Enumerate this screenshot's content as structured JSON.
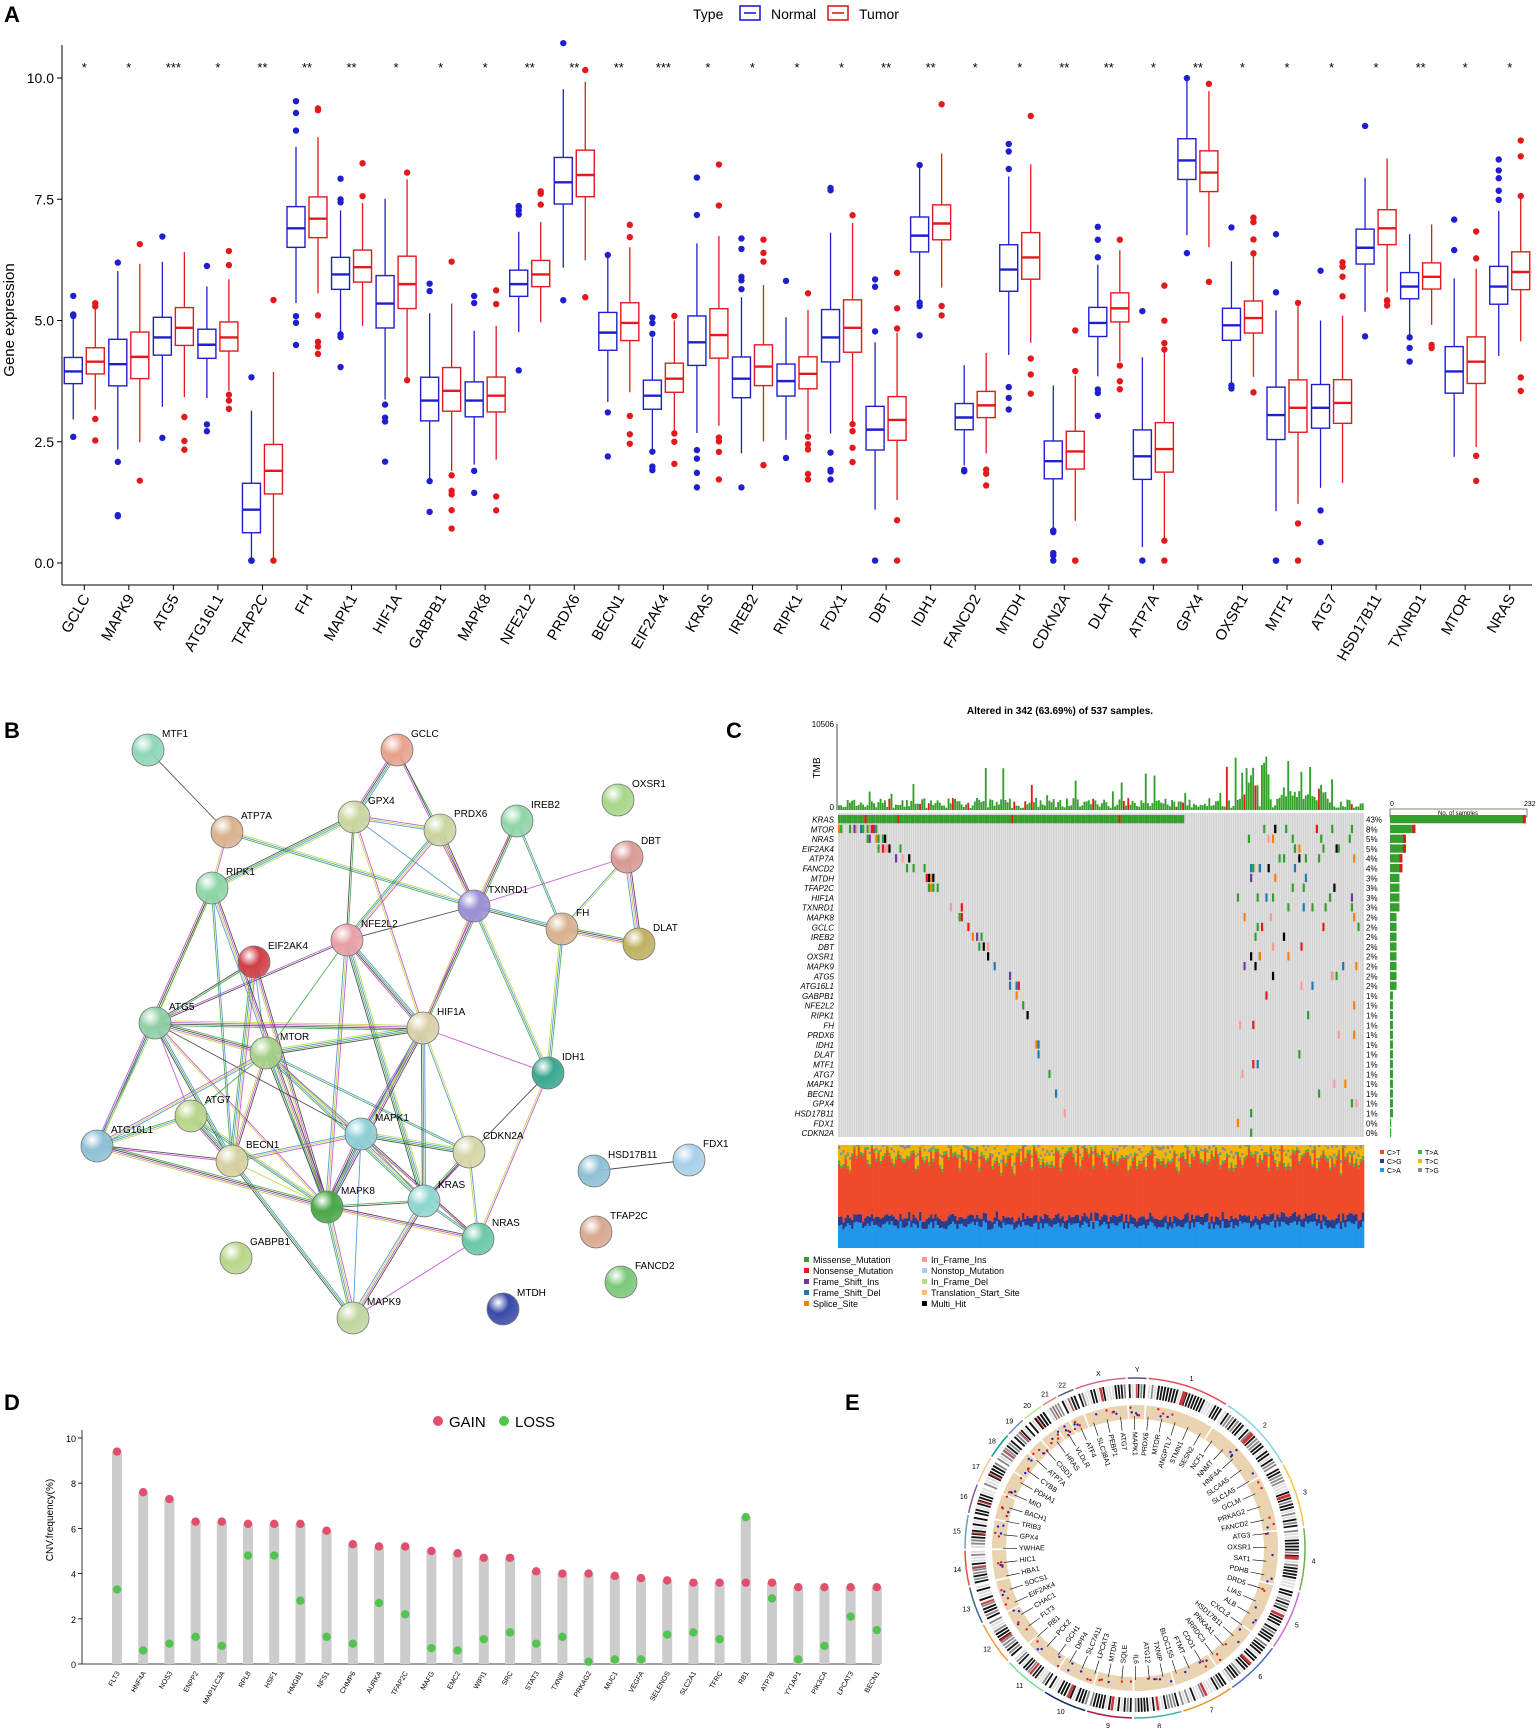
{
  "panel_letters": [
    "A",
    "B",
    "C",
    "D",
    "E"
  ],
  "colors": {
    "normal": "#1f1fd0",
    "tumor": "#e3191c",
    "gain": "#e0506e",
    "loss": "#54c451",
    "bar": "#cccccc",
    "missense": "#33a02c",
    "nonsense": "#e31a1c",
    "fs_ins": "#6a3d9a",
    "fs_del": "#1f78b4",
    "splice": "#ff7f00",
    "inframe_ins": "#fb9a99",
    "nonstop": "#a6cee3",
    "inframe_del": "#b2df8a",
    "tss": "#fdbf6f",
    "multi": "#000000"
  },
  "chart_data": [
    {
      "id": "A",
      "type": "box",
      "ylabel": "Gene expression",
      "legend_title": "Type",
      "legend": [
        "Normal",
        "Tumor"
      ],
      "legend_position": "top",
      "ylim": [
        -0.4,
        10.5
      ],
      "yticks": [
        "0.0",
        "2.5",
        "5.0",
        "7.5",
        "10.0"
      ],
      "categories": [
        "GCLC",
        "MAPK9",
        "ATG5",
        "ATG16L1",
        "TFAP2C",
        "FH",
        "MAPK1",
        "HIF1A",
        "GABPB1",
        "MAPK8",
        "NFE2L2",
        "PRDX6",
        "BECN1",
        "EIF2AK4",
        "KRAS",
        "IREB2",
        "RIPK1",
        "FDX1",
        "DBT",
        "IDH1",
        "FANCD2",
        "MTDH",
        "CDKN2A",
        "DLAT",
        "ATP7A",
        "GPX4",
        "OXSR1",
        "MTF1",
        "ATG7",
        "HSD17B11",
        "TXNRD1",
        "MTOR",
        "NRAS"
      ],
      "significance": [
        "*",
        "*",
        "***",
        "*",
        "**",
        "**",
        "**",
        "*",
        "*",
        "*",
        "**",
        "**",
        "**",
        "***",
        "*",
        "*",
        "*",
        "*",
        "**",
        "**",
        "*",
        "*",
        "**",
        "**",
        "*",
        "**",
        "*",
        "*",
        "*",
        "*",
        "**",
        "*",
        "*"
      ],
      "normal_median": [
        3.95,
        4.1,
        4.65,
        4.5,
        1.1,
        6.9,
        5.95,
        5.35,
        3.35,
        3.35,
        5.75,
        7.85,
        4.75,
        3.45,
        4.55,
        3.8,
        3.75,
        4.65,
        2.75,
        6.75,
        3.0,
        6.05,
        2.1,
        4.95,
        2.2,
        8.3,
        4.9,
        3.05,
        3.2,
        6.5,
        5.7,
        3.95,
        5.7
      ],
      "tumor_median": [
        4.15,
        4.25,
        4.85,
        4.65,
        1.9,
        7.1,
        6.1,
        5.75,
        3.55,
        3.45,
        5.95,
        8.0,
        4.95,
        3.8,
        4.7,
        4.05,
        3.9,
        4.85,
        2.95,
        7.0,
        3.25,
        6.3,
        2.3,
        5.25,
        2.35,
        8.05,
        5.05,
        3.2,
        3.3,
        6.9,
        5.9,
        4.15,
        6.0
      ]
    },
    {
      "id": "C",
      "type": "oncoplot",
      "title": "Altered in 342 (63.69%) of 537 samples.",
      "tmb_label": "TMB",
      "tmb_max": "10506",
      "samples_label": "No. of samples",
      "samples_axis": [
        "0",
        "232"
      ],
      "genes": [
        "KRAS",
        "MTOR",
        "NRAS",
        "EIF2AK4",
        "ATP7A",
        "FANCD2",
        "MTDH",
        "TFAP2C",
        "HIF1A",
        "TXNRD1",
        "MAPK8",
        "GCLC",
        "IREB2",
        "DBT",
        "OXSR1",
        "MAPK9",
        "ATG5",
        "ATG16L1",
        "GABPB1",
        "NFE2L2",
        "RIPK1",
        "FH",
        "PRDX6",
        "IDH1",
        "DLAT",
        "MTF1",
        "ATG7",
        "MAPK1",
        "BECN1",
        "GPX4",
        "HSD17B11",
        "FDX1",
        "CDKN2A"
      ],
      "percents": [
        "43%",
        "8%",
        "5%",
        "5%",
        "4%",
        "4%",
        "3%",
        "3%",
        "3%",
        "3%",
        "2%",
        "2%",
        "2%",
        "2%",
        "2%",
        "2%",
        "2%",
        "2%",
        "1%",
        "1%",
        "1%",
        "1%",
        "1%",
        "1%",
        "1%",
        "1%",
        "1%",
        "1%",
        "1%",
        "1%",
        "1%",
        "0%",
        "0%"
      ],
      "sample_counts": [
        230,
        43,
        27,
        27,
        21,
        21,
        16,
        16,
        16,
        16,
        11,
        11,
        11,
        11,
        11,
        11,
        11,
        11,
        5,
        5,
        5,
        5,
        5,
        5,
        5,
        5,
        5,
        5,
        5,
        5,
        5,
        2,
        2
      ],
      "titv_legend": [
        "C>T",
        "T>A",
        "C>G",
        "T>C",
        "C>A",
        "T>G"
      ],
      "titv_fraction": {
        "C>T": 0.55,
        "C>A": 0.22,
        "C>G": 0.08,
        "T>C": 0.09,
        "T>A": 0.03,
        "T>G": 0.03
      },
      "variant_legend": [
        "Missense_Mutation",
        "In_Frame_Ins",
        "Nonsense_Mutation",
        "Nonstop_Mutation",
        "Frame_Shift_Ins",
        "In_Frame_Del",
        "Frame_Shift_Del",
        "Translation_Start_Site",
        "Splice_Site",
        "Multi_Hit"
      ]
    },
    {
      "id": "D",
      "type": "lollipop",
      "ylabel": "CNV.frequency(%)",
      "legend": [
        "GAIN",
        "LOSS"
      ],
      "ylim": [
        0,
        10
      ],
      "yticks": [
        "0",
        "2",
        "4",
        "6",
        "8",
        "10"
      ],
      "categories": [
        "FLT3",
        "HNF4A",
        "NOS3",
        "ENPP2",
        "MAP1LC3A",
        "RPL8",
        "HSF1",
        "HMGB1",
        "NFS1",
        "CHMP6",
        "AURKA",
        "TFAP2C",
        "MAFG",
        "EMC2",
        "WIPI1",
        "SRC",
        "STAT3",
        "TXNIP",
        "PRKAG2",
        "MUC1",
        "VEGFA",
        "SELENOS",
        "SLC2A1",
        "TFRC",
        "RB1",
        "ATP7B",
        "YY1AP1",
        "PIK3CA",
        "LPCAT3",
        "BECN1"
      ],
      "gain": [
        9.4,
        7.6,
        7.3,
        6.3,
        6.3,
        6.2,
        6.2,
        6.2,
        5.9,
        5.3,
        5.2,
        5.2,
        5.0,
        4.9,
        4.7,
        4.7,
        4.1,
        4.0,
        4.0,
        3.9,
        3.8,
        3.7,
        3.6,
        3.6,
        3.6,
        3.6,
        3.4,
        3.4,
        3.4,
        3.4
      ],
      "loss": [
        3.3,
        0.6,
        0.9,
        1.2,
        0.8,
        4.8,
        4.8,
        2.8,
        1.2,
        0.9,
        2.7,
        2.2,
        0.7,
        0.6,
        1.1,
        1.4,
        0.9,
        1.2,
        0.1,
        0.2,
        0.2,
        1.3,
        1.4,
        1.1,
        6.5,
        2.9,
        0.2,
        0.8,
        2.1,
        1.5
      ]
    }
  ],
  "network": {
    "nodes": [
      {
        "id": "MTF1",
        "color": "#8fd6b8"
      },
      {
        "id": "GCLC",
        "color": "#e8a38f"
      },
      {
        "id": "OXSR1",
        "color": "#a8d68a"
      },
      {
        "id": "ATP7A",
        "color": "#d9b28f"
      },
      {
        "id": "GPX4",
        "color": "#c9d6a0"
      },
      {
        "id": "PRDX6",
        "color": "#c9d6a0"
      },
      {
        "id": "IREB2",
        "color": "#8fd6a8"
      },
      {
        "id": "DBT",
        "color": "#d99a94"
      },
      {
        "id": "RIPK1",
        "color": "#8fd6a8"
      },
      {
        "id": "TXNRD1",
        "color": "#9b8ed6"
      },
      {
        "id": "FH",
        "color": "#d9b28f"
      },
      {
        "id": "DLAT",
        "color": "#bfb060"
      },
      {
        "id": "NFE2L2",
        "color": "#e8a0a8"
      },
      {
        "id": "EIF2AK4",
        "color": "#d04048"
      },
      {
        "id": "ATG5",
        "color": "#8fd0a8"
      },
      {
        "id": "HIF1A",
        "color": "#d9d0a8"
      },
      {
        "id": "MTOR",
        "color": "#a8d08a"
      },
      {
        "id": "IDH1",
        "color": "#3aa890"
      },
      {
        "id": "ATG7",
        "color": "#b8d68a"
      },
      {
        "id": "ATG16L1",
        "color": "#8fc0d6"
      },
      {
        "id": "MAPK1",
        "color": "#8fd0d6"
      },
      {
        "id": "BECN1",
        "color": "#d6d0a0"
      },
      {
        "id": "CDKN2A",
        "color": "#d6d6a8"
      },
      {
        "id": "HSD17B11",
        "color": "#8fc0d6"
      },
      {
        "id": "FDX1",
        "color": "#a8d0e8"
      },
      {
        "id": "MAPK8",
        "color": "#4aa848"
      },
      {
        "id": "KRAS",
        "color": "#8fd6d0"
      },
      {
        "id": "TFAP2C",
        "color": "#d9a88f"
      },
      {
        "id": "NRAS",
        "color": "#6ac8a8"
      },
      {
        "id": "GABPB1",
        "color": "#b8d68a"
      },
      {
        "id": "FANCD2",
        "color": "#7ac87a"
      },
      {
        "id": "MTDH",
        "color": "#3a4aa8"
      },
      {
        "id": "MAPK9",
        "color": "#c0d6a0"
      }
    ]
  },
  "circos": {
    "chromosomes": [
      "1",
      "2",
      "3",
      "4",
      "5",
      "6",
      "7",
      "8",
      "9",
      "10",
      "11",
      "12",
      "13",
      "14",
      "15",
      "16",
      "17",
      "18",
      "19",
      "20",
      "21",
      "22",
      "X",
      "Y"
    ],
    "genes": [
      "PRDX6",
      "MTOR",
      "ANGPTL7",
      "STMN1",
      "SESN2",
      "NCF1",
      "NNMT",
      "HNF4A",
      "SLC4A5",
      "SLC1A5",
      "GCLM",
      "PRKAG2",
      "FANCD2",
      "ATG3",
      "OXSR1",
      "SAT1",
      "PDHB",
      "DRD5",
      "LIAS",
      "ALB",
      "CXCL2",
      "HSD17B11",
      "PRKAA1",
      "ARRDC3",
      "CDO1",
      "FTMT",
      "BLOC1S5",
      "TXNIP",
      "ATG12",
      "IL6",
      "SQLE",
      "MTDH",
      "LPCAT3",
      "SLC7A11",
      "DPP4",
      "GCH1",
      "PCK2",
      "RB1",
      "FLT3",
      "CHAC1",
      "EIF2AK4",
      "SOCS1",
      "HBA1",
      "HIC1",
      "YWHAE",
      "GPX4",
      "TRIB3",
      "BACH1",
      "MIO",
      "PDHA1",
      "CYBB",
      "ATP7A",
      "CISD1",
      "HRAS",
      "VLDLR",
      "ATF4",
      "SLC38A1",
      "PEBP1",
      "ATG7",
      "MAPK1"
    ]
  }
}
